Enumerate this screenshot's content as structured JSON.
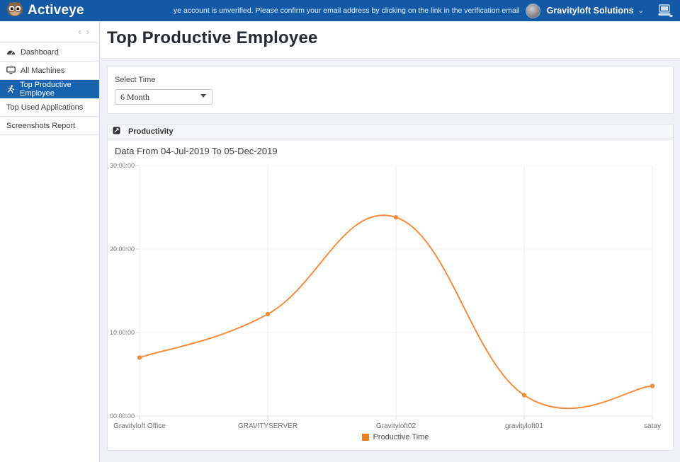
{
  "navbar": {
    "brand": "Activeye",
    "notification": "ye account is unverified. Please confirm your email address by clicking on the link in the verification email delivered to your inbox",
    "account": "Gravityloft Solutions",
    "caret": "⌄",
    "bg_color": "#1359a5"
  },
  "sidebar": {
    "collapse_left": "‹",
    "collapse_right": "›",
    "items": [
      {
        "label": "Dashboard",
        "active": false
      },
      {
        "label": "All Machines",
        "active": false
      },
      {
        "label": "Top Productive Employee",
        "active": true
      },
      {
        "label": "Top Used Applications",
        "active": false
      },
      {
        "label": "Screenshots Report",
        "active": false
      }
    ],
    "active_color": "#1763b0"
  },
  "main": {
    "title": "Top Productive Employee",
    "filter": {
      "label": "Select Time",
      "selected": "6 Month"
    },
    "panel": {
      "title": "Productivity",
      "subtitle": "Data From 04-Jul-2019 To 05-Dec-2019"
    }
  },
  "chart_data": {
    "type": "line",
    "title": "Data From 04-Jul-2019 To 05-Dec-2019",
    "categories": [
      "Gravityloft Office",
      "GRAVITYSERVER",
      "Gravityloft02",
      "gravityloft01",
      "satay"
    ],
    "series": [
      {
        "name": "Productive Time",
        "values_hours": [
          7.0,
          12.2,
          23.8,
          2.5,
          3.6
        ],
        "values_hhmmss": [
          "07:00:00",
          "12:12:00",
          "23:48:00",
          "02:30:00",
          "03:36:00"
        ]
      }
    ],
    "yticks_top_to_bottom": [
      "30:00:00",
      "20:00:00",
      "10:00:00",
      "00:00:00"
    ],
    "ylim_hours": [
      0,
      30
    ],
    "grid": true,
    "curve": "smooth",
    "line_color": "#f78d3c",
    "legend_color": "#f27d1d",
    "legend": "Productive Time",
    "legend_position": "bottom"
  }
}
